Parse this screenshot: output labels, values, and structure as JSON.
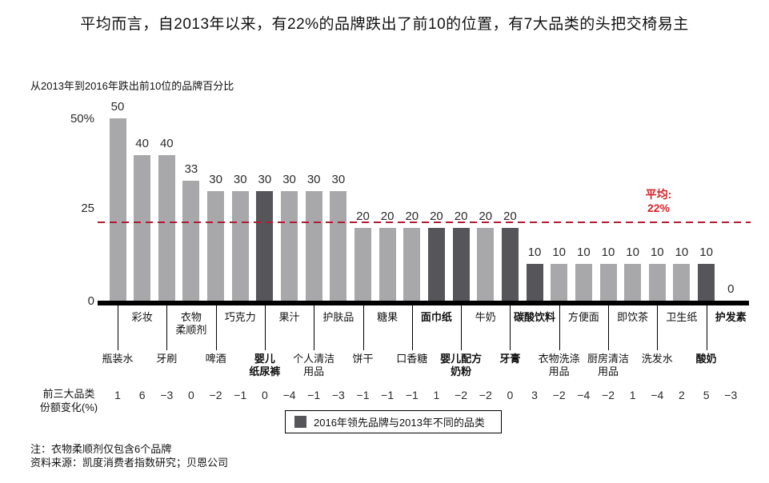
{
  "title": "平均而言，自2013年以来，有22%的品牌跌出了前10的位置，有7大品类的头把交椅易主",
  "subtitle": "从2013年到2016年跌出前10位的品牌百分比",
  "share_change_label": {
    "line1": "前三大品类",
    "line2": "份额变化(%)"
  },
  "notes": {
    "line1": "注：衣物柔顺剂仅包含6个品牌",
    "line2": "资料来源：凯度消费者指数研究；贝恩公司"
  },
  "colors": {
    "bar_light": "#a8a8aa",
    "bar_dark": "#55555a",
    "dash_red": "#ae1e32",
    "average_red": "#d6252c",
    "axis_black": "#000000"
  },
  "chart_data": {
    "type": "bar",
    "title": "从2013年到2016年跌出前10位的品牌百分比",
    "ylim": [
      0,
      50
    ],
    "y_ticks": [
      "50%",
      "25",
      "0"
    ],
    "grid": false,
    "average_line": {
      "value": 22,
      "label": "平均:",
      "display": "22%"
    },
    "legend": [
      {
        "swatch": "dark",
        "label": "2016年领先品牌与2013年不同的品类"
      }
    ],
    "series": [
      {
        "name": "跌出前10位的品牌百分比(%)",
        "values": [
          50,
          40,
          40,
          33,
          30,
          30,
          30,
          30,
          30,
          30,
          20,
          20,
          20,
          20,
          20,
          20,
          20,
          10,
          10,
          10,
          10,
          10,
          10,
          10,
          10,
          0
        ]
      },
      {
        "name": "前三大品类份额变化(%)",
        "values": [
          1,
          6,
          -3,
          0,
          -2,
          -1,
          0,
          -4,
          -1,
          -3,
          -1,
          -1,
          -1,
          1,
          -2,
          -2,
          0,
          3,
          -2,
          -4,
          -2,
          1,
          -4,
          2,
          5,
          -3
        ]
      }
    ],
    "items": [
      {
        "label": "瓶装水",
        "label_lines": [
          "瓶装水"
        ],
        "row": "lower",
        "value": 50,
        "share_change": 1,
        "leader_changed": false
      },
      {
        "label": "彩妆",
        "label_lines": [
          "彩妆"
        ],
        "row": "upper",
        "value": 40,
        "share_change": 6,
        "leader_changed": false
      },
      {
        "label": "牙刷",
        "label_lines": [
          "牙刷"
        ],
        "row": "lower",
        "value": 40,
        "share_change": -3,
        "leader_changed": false
      },
      {
        "label": "衣物柔顺剂",
        "label_lines": [
          "衣物",
          "柔顺剂"
        ],
        "row": "upper",
        "value": 33,
        "share_change": 0,
        "leader_changed": false
      },
      {
        "label": "啤酒",
        "label_lines": [
          "啤酒"
        ],
        "row": "lower",
        "value": 30,
        "share_change": -2,
        "leader_changed": false
      },
      {
        "label": "巧克力",
        "label_lines": [
          "巧克力"
        ],
        "row": "upper",
        "value": 30,
        "share_change": -1,
        "leader_changed": false
      },
      {
        "label": "婴儿纸尿裤",
        "label_lines": [
          "婴儿",
          "纸尿裤"
        ],
        "row": "lower",
        "value": 30,
        "share_change": 0,
        "leader_changed": true
      },
      {
        "label": "果汁",
        "label_lines": [
          "果汁"
        ],
        "row": "upper",
        "value": 30,
        "share_change": -4,
        "leader_changed": false
      },
      {
        "label": "个人清洁用品",
        "label_lines": [
          "个人清洁",
          "用品"
        ],
        "row": "lower",
        "value": 30,
        "share_change": -1,
        "leader_changed": false
      },
      {
        "label": "护肤品",
        "label_lines": [
          "护肤品"
        ],
        "row": "upper",
        "value": 30,
        "share_change": -3,
        "leader_changed": false
      },
      {
        "label": "饼干",
        "label_lines": [
          "饼干"
        ],
        "row": "lower",
        "value": 20,
        "share_change": -1,
        "leader_changed": false
      },
      {
        "label": "糖果",
        "label_lines": [
          "糖果"
        ],
        "row": "upper",
        "value": 20,
        "share_change": -1,
        "leader_changed": false
      },
      {
        "label": "口香糖",
        "label_lines": [
          "口香糖"
        ],
        "row": "lower",
        "value": 20,
        "share_change": -1,
        "leader_changed": false
      },
      {
        "label": "面巾纸",
        "label_lines": [
          "面巾纸"
        ],
        "row": "upper",
        "value": 20,
        "share_change": 1,
        "leader_changed": true
      },
      {
        "label": "婴儿配方奶粉",
        "label_lines": [
          "婴儿配方",
          "奶粉"
        ],
        "row": "lower",
        "value": 20,
        "share_change": -2,
        "leader_changed": true
      },
      {
        "label": "牛奶",
        "label_lines": [
          "牛奶"
        ],
        "row": "upper",
        "value": 20,
        "share_change": -2,
        "leader_changed": false
      },
      {
        "label": "牙膏",
        "label_lines": [
          "牙膏"
        ],
        "row": "lower",
        "value": 20,
        "share_change": 0,
        "leader_changed": true
      },
      {
        "label": "碳酸饮料",
        "label_lines": [
          "碳酸饮料"
        ],
        "row": "upper",
        "value": 10,
        "share_change": 3,
        "leader_changed": true
      },
      {
        "label": "衣物洗涤用品",
        "label_lines": [
          "衣物洗涤",
          "用品"
        ],
        "row": "lower",
        "value": 10,
        "share_change": -2,
        "leader_changed": false
      },
      {
        "label": "方便面",
        "label_lines": [
          "方便面"
        ],
        "row": "upper",
        "value": 10,
        "share_change": -4,
        "leader_changed": false
      },
      {
        "label": "厨房清洁用品",
        "label_lines": [
          "厨房清洁",
          "用品"
        ],
        "row": "lower",
        "value": 10,
        "share_change": -2,
        "leader_changed": false
      },
      {
        "label": "即饮茶",
        "label_lines": [
          "即饮茶"
        ],
        "row": "upper",
        "value": 10,
        "share_change": 1,
        "leader_changed": false
      },
      {
        "label": "洗发水",
        "label_lines": [
          "洗发水"
        ],
        "row": "lower",
        "value": 10,
        "share_change": -4,
        "leader_changed": false
      },
      {
        "label": "卫生纸",
        "label_lines": [
          "卫生纸"
        ],
        "row": "upper",
        "value": 10,
        "share_change": 2,
        "leader_changed": false
      },
      {
        "label": "酸奶",
        "label_lines": [
          "酸奶"
        ],
        "row": "lower",
        "value": 10,
        "share_change": 5,
        "leader_changed": true
      },
      {
        "label": "护发素",
        "label_lines": [
          "护发素"
        ],
        "row": "upper",
        "value": 0,
        "share_change": -3,
        "leader_changed": true
      }
    ]
  }
}
